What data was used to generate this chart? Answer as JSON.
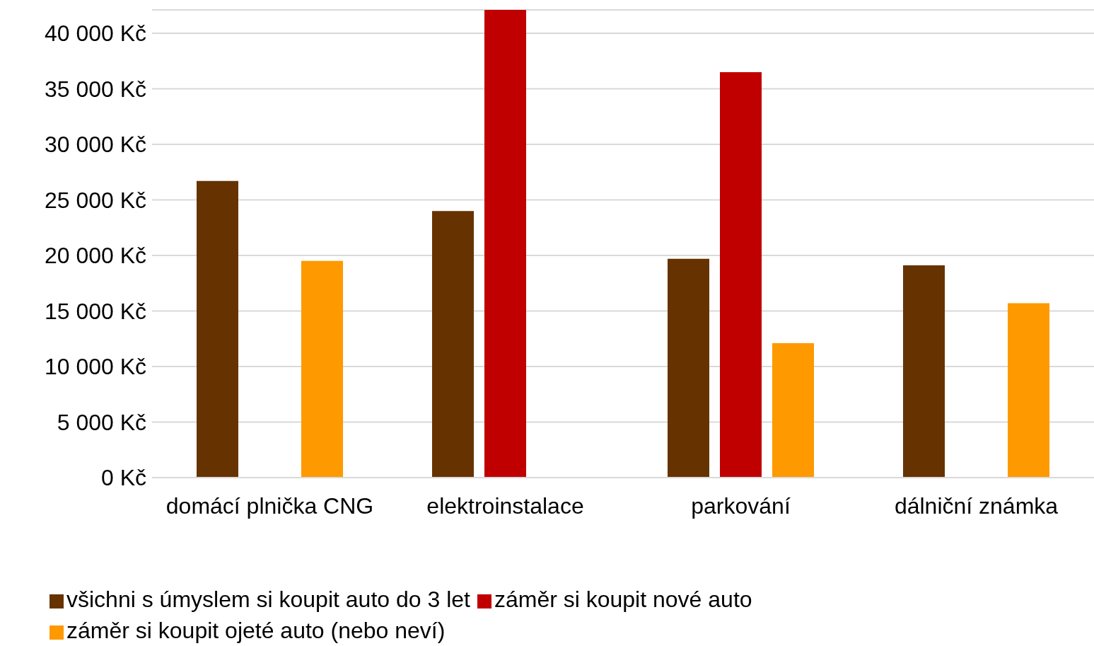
{
  "chart_data": {
    "type": "bar",
    "categories": [
      "domácí plnička CNG",
      "elektroinstalace",
      "parkování",
      "dálniční známka"
    ],
    "series": [
      {
        "name": "všichni s úmyslem si koupit auto do 3 let",
        "color": "#663300",
        "values": [
          26700,
          24000,
          19700,
          19100
        ]
      },
      {
        "name": "záměr si koupit nové auto",
        "color": "#c00000",
        "values": [
          null,
          42100,
          36500,
          null
        ]
      },
      {
        "name": "záměr si koupit ojeté auto (nebo neví)",
        "color": "#ff9900",
        "values": [
          19500,
          null,
          12100,
          15700
        ]
      }
    ],
    "ylim": [
      0,
      42100
    ],
    "yticks": [
      {
        "value": 0,
        "label": "0 Kč"
      },
      {
        "value": 5000,
        "label": "5 000 Kč"
      },
      {
        "value": 10000,
        "label": "10 000 Kč"
      },
      {
        "value": 15000,
        "label": "15 000 Kč"
      },
      {
        "value": 20000,
        "label": "20 000 Kč"
      },
      {
        "value": 25000,
        "label": "25 000 Kč"
      },
      {
        "value": 30000,
        "label": "30 000 Kč"
      },
      {
        "value": 35000,
        "label": "35 000 Kč"
      },
      {
        "value": 40000,
        "label": "40 000 Kč"
      }
    ],
    "grid": "y",
    "legend": "bottom"
  }
}
